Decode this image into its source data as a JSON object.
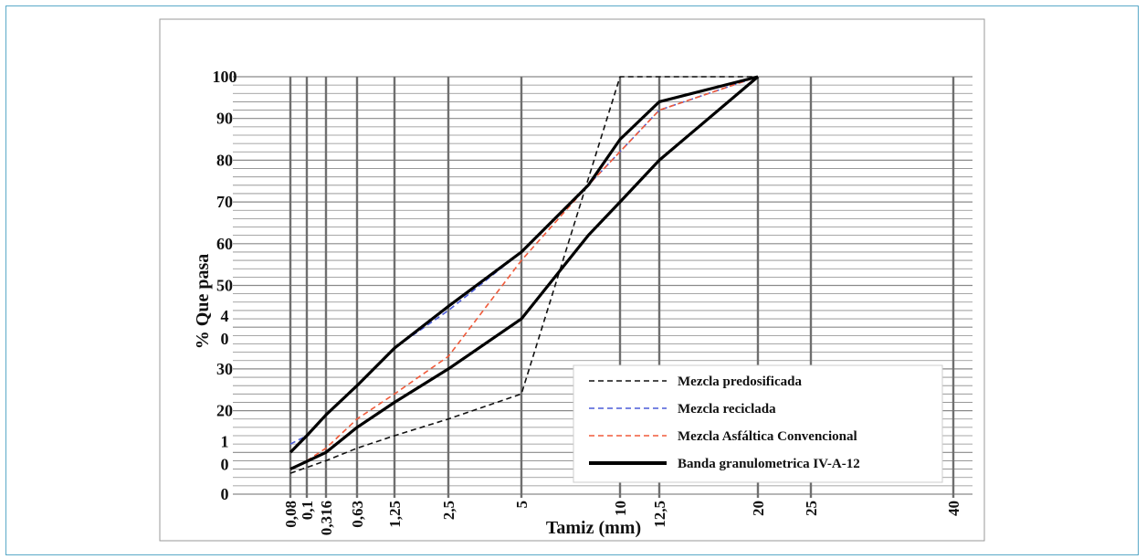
{
  "chart_data": {
    "type": "line",
    "xlabel": "Tamiz (mm)",
    "ylabel": "% Que pasa",
    "ylim": [
      0,
      100
    ],
    "x_ticks": [
      "0,08",
      "0,1",
      "0,316",
      "0,63",
      "1,25",
      "2,5",
      "5",
      "10",
      "12,5",
      "20",
      "25",
      "40"
    ],
    "y_ticks": [
      "0",
      "1\n0",
      "20",
      "30",
      "4\n0",
      "50",
      "60",
      "70",
      "80",
      "90",
      "100"
    ],
    "legend_position": "bottom-right",
    "grid": true,
    "series": [
      {
        "name": "Mezcla predosificada",
        "style": "dashed",
        "color": "#111111",
        "points": [
          [
            0.08,
            5
          ],
          [
            0.316,
            8
          ],
          [
            0.63,
            11
          ],
          [
            1.25,
            14
          ],
          [
            2.5,
            18
          ],
          [
            5,
            24
          ],
          [
            10,
            100
          ],
          [
            12.5,
            100
          ],
          [
            20,
            100
          ]
        ]
      },
      {
        "name": "Mezcla reciclada",
        "style": "dashed",
        "color": "#4a5bd8",
        "points": [
          [
            0.08,
            12
          ],
          [
            0.1,
            14
          ],
          [
            0.316,
            19
          ],
          [
            0.63,
            26
          ],
          [
            1.25,
            35
          ],
          [
            2.5,
            44
          ],
          [
            5,
            58
          ],
          [
            8,
            74
          ],
          [
            12.5,
            92
          ],
          [
            20,
            100
          ]
        ]
      },
      {
        "name": "Mezcla Asfáltica Convencional",
        "style": "dashed",
        "color": "#f05a3a",
        "points": [
          [
            0.08,
            6
          ],
          [
            0.1,
            8
          ],
          [
            0.316,
            11
          ],
          [
            0.63,
            18
          ],
          [
            1.25,
            24
          ],
          [
            2.5,
            33
          ],
          [
            5,
            56
          ],
          [
            8,
            74
          ],
          [
            12.5,
            92
          ],
          [
            20,
            100
          ]
        ]
      },
      {
        "name": "Banda granulometrica IV-A-12",
        "style": "solid",
        "color": "#000000",
        "points": [
          [
            0.08,
            10
          ],
          [
            0.1,
            14
          ],
          [
            0.316,
            19
          ],
          [
            0.63,
            26
          ],
          [
            1.25,
            35
          ],
          [
            2.5,
            45
          ],
          [
            5,
            58
          ],
          [
            8,
            74
          ],
          [
            10,
            85
          ],
          [
            12.5,
            94
          ],
          [
            20,
            100
          ]
        ]
      },
      {
        "name": "",
        "style": "solid",
        "color": "#000000",
        "points": [
          [
            0.08,
            6
          ],
          [
            0.316,
            10
          ],
          [
            0.63,
            16
          ],
          [
            1.25,
            22
          ],
          [
            2.5,
            30
          ],
          [
            5,
            42
          ],
          [
            8,
            62
          ],
          [
            10,
            70
          ],
          [
            12.5,
            80
          ],
          [
            20,
            100
          ]
        ]
      }
    ]
  }
}
